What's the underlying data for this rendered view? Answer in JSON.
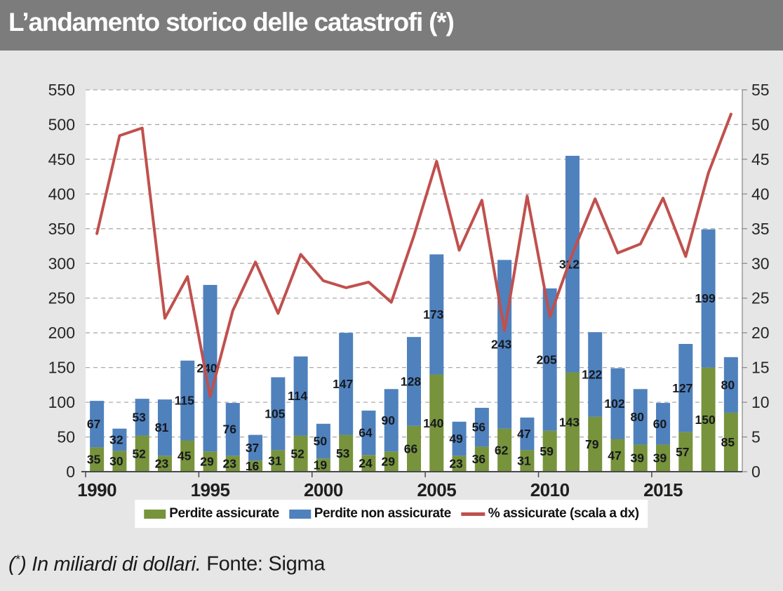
{
  "header": {
    "title": "L’andamento storico delle catastrofi (*)",
    "bg_color": "#7C7C7C",
    "text_color": "#FFFFFF"
  },
  "footer": {
    "note_open": "(",
    "note_star": "*",
    "note_close": ")",
    "note_text": "In miliardi di dollari.",
    "source": "Fonte: Sigma"
  },
  "chart_data": {
    "type": "combo-stacked-bar-line",
    "title": "L’andamento storico delle catastrofi (*)",
    "x": [
      1990,
      1991,
      1992,
      1993,
      1994,
      1995,
      1996,
      1997,
      1998,
      1999,
      2000,
      2001,
      2002,
      2003,
      2004,
      2005,
      2006,
      2007,
      2008,
      2009,
      2010,
      2011,
      2012,
      2013,
      2014,
      2015,
      2016,
      2017,
      2018
    ],
    "x_tick_labels": [
      "1990",
      "1995",
      "2000",
      "2005",
      "2010",
      "2015"
    ],
    "x_tick_interval": 5,
    "series": [
      {
        "name": "Perdite assicurate",
        "type": "bar",
        "stack": "losses",
        "axis": "left",
        "color": "#77933C",
        "values": [
          35,
          30,
          52,
          23,
          45,
          29,
          23,
          16,
          31,
          52,
          19,
          53,
          24,
          29,
          66,
          140,
          23,
          36,
          62,
          31,
          59,
          143,
          79,
          47,
          39,
          39,
          57,
          150,
          85
        ]
      },
      {
        "name": "Perdite non assicurate",
        "type": "bar",
        "stack": "losses",
        "axis": "left",
        "color": "#4F81BD",
        "values": [
          67,
          32,
          53,
          81,
          115,
          240,
          76,
          37,
          105,
          114,
          50,
          147,
          64,
          90,
          128,
          173,
          49,
          56,
          243,
          47,
          205,
          312,
          122,
          102,
          80,
          60,
          127,
          199,
          80
        ]
      },
      {
        "name": "% assicurate (scala a dx)",
        "type": "line",
        "axis": "right",
        "color": "#C0504D",
        "values": [
          34.3,
          48.4,
          49.5,
          22.1,
          28.1,
          10.8,
          23.2,
          30.2,
          22.8,
          31.3,
          27.5,
          26.5,
          27.3,
          24.4,
          34.0,
          44.7,
          31.9,
          39.1,
          20.3,
          39.7,
          22.3,
          31.4,
          39.3,
          31.5,
          32.8,
          39.4,
          31.0,
          43.0,
          51.5
        ]
      }
    ],
    "left_axis": {
      "min": 0,
      "max": 550,
      "step": 50
    },
    "right_axis": {
      "min": 0,
      "max": 55,
      "step": 5
    },
    "grid": "horizontal-dashed",
    "grid_color": "#ABABAB",
    "axis_text_color": "#262626",
    "bar_label_color": "#16181D",
    "legend_position": "bottom",
    "bar_labels_visible": true
  }
}
